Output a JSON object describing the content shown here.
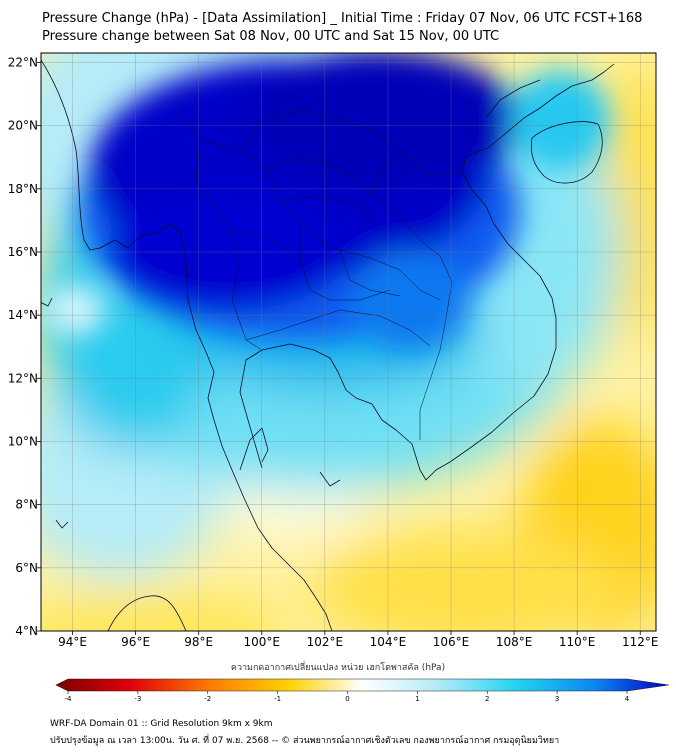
{
  "title": "Pressure Change (hPa) - [Data Assimilation] _ Initial Time : Friday 07 Nov, 06 UTC FCST+168",
  "subtitle": "Pressure change between Sat 08 Nov, 00 UTC and Sat 15 Nov, 00 UTC",
  "map": {
    "lon_range": [
      93,
      112.5
    ],
    "lat_range": [
      4,
      22.3
    ],
    "lon_ticks": [
      94,
      96,
      98,
      100,
      102,
      104,
      106,
      108,
      110,
      112
    ],
    "lon_tick_labels": [
      "94°E",
      "96°E",
      "98°E",
      "100°E",
      "102°E",
      "104°E",
      "106°E",
      "108°E",
      "110°E",
      "112°E"
    ],
    "lat_ticks": [
      4,
      6,
      8,
      10,
      12,
      14,
      16,
      18,
      20,
      22
    ],
    "lat_tick_labels": [
      "4°N",
      "6°N",
      "8°N",
      "10°N",
      "12°N",
      "14°N",
      "16°N",
      "18°N",
      "20°N",
      "22°N"
    ],
    "grid": true,
    "field": "pressure change (hPa)"
  },
  "colorbar": {
    "label": "ความกดอากาศเปลี่ยนแปลง หน่วย เฮกโตพาสคัล (hPa)",
    "range": [
      -4,
      4
    ],
    "ticks": [
      "-4",
      "-3",
      "-2",
      "-1",
      "0",
      "1",
      "2",
      "3",
      "4"
    ],
    "colors": {
      "neg4": "#7a0000",
      "neg3": "#e0000a",
      "neg2": "#ff7a00",
      "neg1": "#ffd200",
      "zero": "#ffffff",
      "pos1": "#b5ecf8",
      "pos2": "#24d4f0",
      "pos3": "#0a86f0",
      "pos4": "#0000c4"
    }
  },
  "footer": {
    "line1": "WRF-DA Domain 01 :: Grid Resolution 9km x 9km",
    "line2": "ปรับปรุงข้อมูล ณ เวลา 13:00น. วัน ศ. ที่ 07 พ.ย. 2568 -- © ส่วนพยากรณ์อากาศเชิงตัวเลข กองพยากรณ์อากาศ กรมอุตุนิยมวิทยา"
  }
}
